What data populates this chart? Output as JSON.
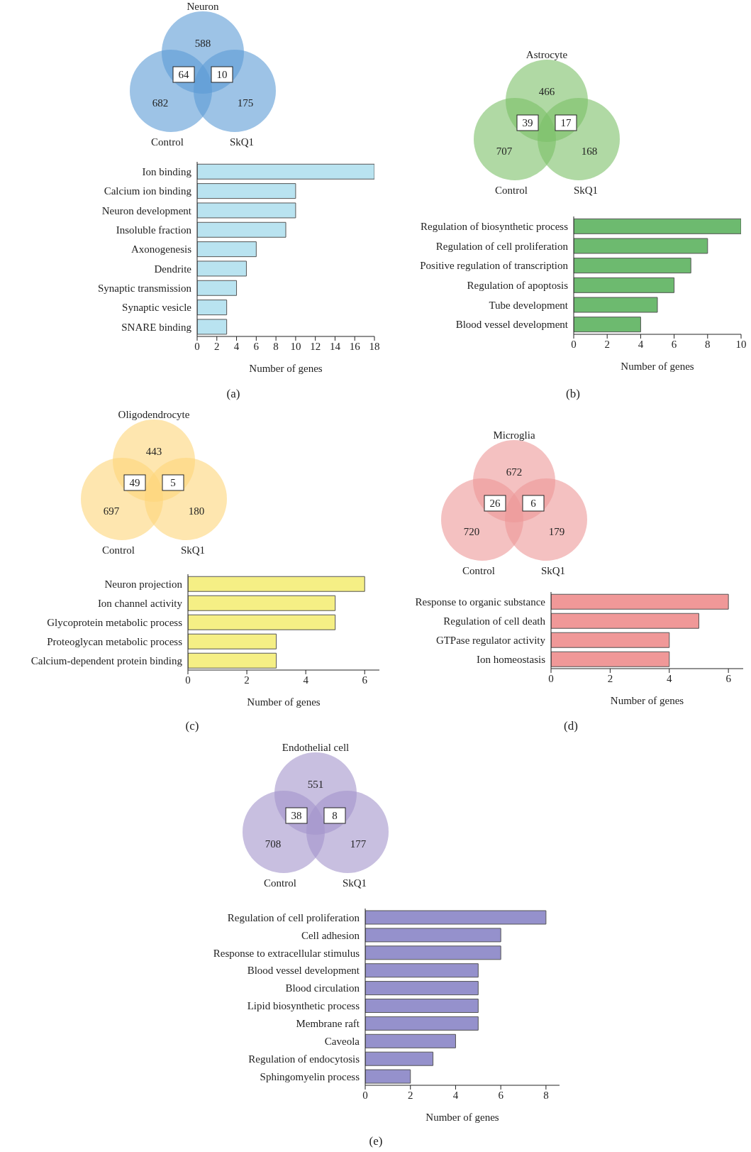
{
  "chart_data": [
    {
      "type": "other",
      "title": "Neuron",
      "categories": [
        null,
        "Control",
        "SkQ1"
      ],
      "values": [
        588,
        682,
        175
      ],
      "data_labels": true,
      "colors": [
        "#5b9bd5",
        "#5b9bd5",
        "#5b9bd5"
      ],
      "annotations": [
        "64",
        "10"
      ]
    },
    {
      "type": "bar",
      "orientation": "horizontal",
      "categories": [
        "Ion binding",
        "Calcium ion binding",
        "Neuron development",
        "Insoluble fraction",
        "Axonogenesis",
        "Dendrite",
        "Synaptic transmission",
        "Synaptic vesicle",
        "SNARE binding"
      ],
      "values": [
        18,
        10,
        10,
        9,
        6,
        5,
        4,
        3,
        3
      ],
      "color": "#b9e3f0",
      "xlim": [
        0,
        18
      ],
      "xticks": [
        0,
        2,
        4,
        6,
        8,
        10,
        12,
        14,
        16,
        18
      ],
      "xlabel": "Number of genes",
      "annotations": [
        "(a)"
      ]
    },
    {
      "type": "other",
      "title": "Astrocyte",
      "categories": [
        null,
        "Control",
        "SkQ1"
      ],
      "values": [
        466,
        707,
        168
      ],
      "data_labels": true,
      "colors": [
        "#7cc067",
        "#7cc067",
        "#7cc067"
      ],
      "annotations": [
        "39",
        "17"
      ]
    },
    {
      "type": "bar",
      "orientation": "horizontal",
      "categories": [
        "Regulation of biosynthetic process",
        "Regulation of cell proliferation",
        "Positive regulation of transcription",
        "Regulation of apoptosis",
        "Tube development",
        "Blood vessel development"
      ],
      "values": [
        10,
        8,
        7,
        6,
        5,
        4
      ],
      "color": "#6dba6f",
      "xlim": [
        0,
        10
      ],
      "xticks": [
        0,
        2,
        4,
        6,
        8,
        10
      ],
      "xlabel": "Number of genes",
      "annotations": [
        "(b)"
      ]
    },
    {
      "type": "other",
      "title": "Oligodendrocyte",
      "categories": [
        null,
        "Control",
        "SkQ1"
      ],
      "values": [
        443,
        697,
        180
      ],
      "data_labels": true,
      "colors": [
        "#fdd57a",
        "#fdd57a",
        "#fdd57a"
      ],
      "annotations": [
        "49",
        "5"
      ]
    },
    {
      "type": "bar",
      "orientation": "horizontal",
      "categories": [
        "Neuron projection",
        "Ion channel activity",
        "Glycoprotein metabolic process",
        "Proteoglycan metabolic process",
        "Calcium-dependent protein binding"
      ],
      "values": [
        6,
        5,
        5,
        3,
        3
      ],
      "color": "#f5ef85",
      "xlim": [
        0,
        6.5
      ],
      "xticks": [
        0,
        2,
        4,
        6
      ],
      "xlabel": "Number of genes",
      "annotations": [
        "(c)"
      ]
    },
    {
      "type": "other",
      "title": "Microglia",
      "categories": [
        null,
        "Control",
        "SkQ1"
      ],
      "values": [
        672,
        720,
        179
      ],
      "data_labels": true,
      "colors": [
        "#ec9898",
        "#ec9898",
        "#ec9898"
      ],
      "annotations": [
        "26",
        "6"
      ]
    },
    {
      "type": "bar",
      "orientation": "horizontal",
      "categories": [
        "Response to organic substance",
        "Regulation of cell death",
        "GTPase regulator activity",
        "Ion homeostasis"
      ],
      "values": [
        6,
        5,
        4,
        4
      ],
      "color": "#f09898",
      "xlim": [
        0,
        6.5
      ],
      "xticks": [
        0,
        2,
        4,
        6
      ],
      "xlabel": "Number of genes",
      "annotations": [
        "(d)"
      ]
    },
    {
      "type": "other",
      "title": "Endothelial cell",
      "categories": [
        null,
        "Control",
        "SkQ1"
      ],
      "values": [
        551,
        708,
        177
      ],
      "data_labels": true,
      "colors": [
        "#a394cb",
        "#a394cb",
        "#a394cb"
      ],
      "annotations": [
        "38",
        "8"
      ]
    },
    {
      "type": "bar",
      "orientation": "horizontal",
      "categories": [
        "Regulation of cell proliferation",
        "Cell adhesion",
        "Response to extracellular stimulus",
        "Blood vessel development",
        "Blood circulation",
        "Lipid biosynthetic process",
        "Membrane raft",
        "Caveola",
        "Regulation of endocytosis",
        "Sphingomyelin process"
      ],
      "values": [
        8,
        6,
        6,
        5,
        5,
        5,
        5,
        4,
        3,
        2
      ],
      "color": "#9591cc",
      "xlim": [
        0,
        8.6
      ],
      "xticks": [
        0,
        2,
        4,
        6,
        8
      ],
      "xlabel": "Number of genes",
      "annotations": [
        "(e)"
      ]
    }
  ]
}
